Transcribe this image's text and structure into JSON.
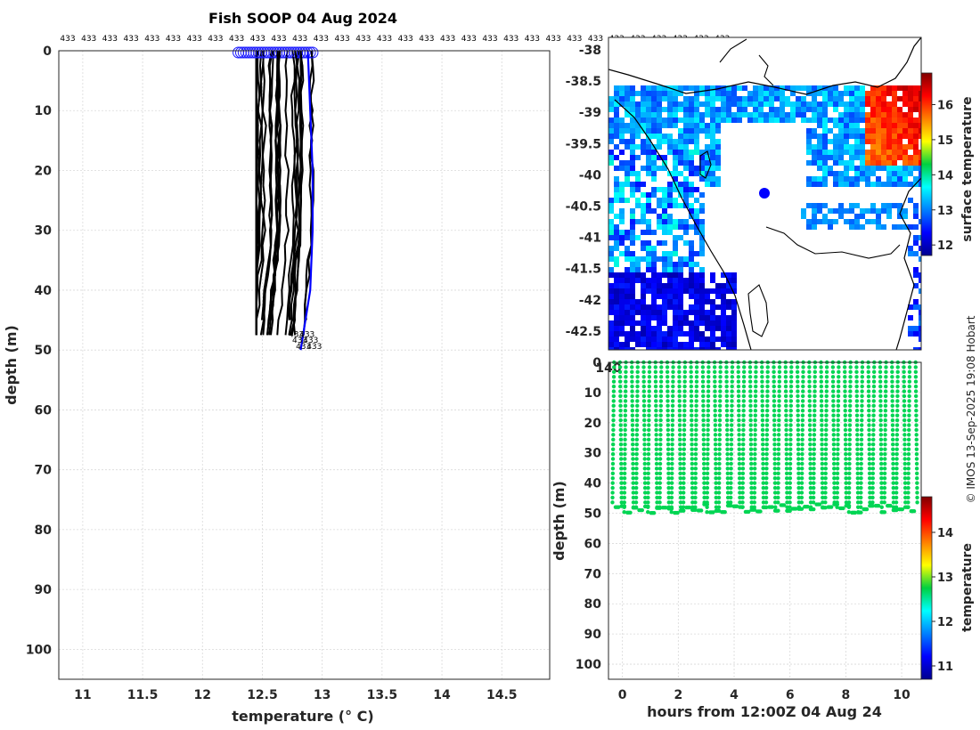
{
  "header": {
    "title": "Fish SOOP 04 Aug 2024"
  },
  "credit": "© IMOS 13-Sep-2025 19:08 Hobart",
  "chart_data": [
    {
      "type": "line",
      "name": "profiles",
      "title": "Fish SOOP 04 Aug 2024",
      "xlabel": "temperature (° C)",
      "ylabel": "depth (m)",
      "xlim": [
        10.8,
        14.9
      ],
      "ylim": [
        105,
        0
      ],
      "xticks": [
        11,
        11.5,
        12,
        12.5,
        13,
        13.5,
        14,
        14.5
      ],
      "xtick_labels": [
        "11",
        "11.5",
        "12",
        "12.5",
        "13",
        "13.5",
        "14",
        "14.5"
      ],
      "yticks": [
        0,
        10,
        20,
        30,
        40,
        50,
        60,
        70,
        80,
        90,
        100
      ],
      "ytick_labels": [
        "0",
        "10",
        "20",
        "30",
        "40",
        "50",
        "60",
        "70",
        "80",
        "90",
        "100"
      ],
      "profile_label": "433",
      "profile_count": 30,
      "surface_temp_range": [
        12.3,
        12.92
      ],
      "bottom_depth_range": [
        47,
        50
      ],
      "series": [
        {
          "name": "latest profile",
          "color": "#0000ff",
          "points": [
            [
              12.88,
              0
            ],
            [
              12.9,
              10
            ],
            [
              12.92,
              20
            ],
            [
              12.92,
              30
            ],
            [
              12.9,
              40
            ],
            [
              12.82,
              50
            ]
          ]
        }
      ]
    },
    {
      "type": "heatmap",
      "name": "surface-temperature-map",
      "xlabel": "",
      "ylabel": "",
      "xlim": [
        140,
        142.6
      ],
      "ylim": [
        -42.8,
        -37.8
      ],
      "yticks": [
        -38,
        -38.5,
        -39,
        -39.5,
        -40,
        -40.5,
        -41,
        -41.5,
        -42,
        -42.5
      ],
      "ytick_labels": [
        "-38",
        "-38.5",
        "-39",
        "-39.5",
        "-40",
        "-40.5",
        "-41",
        "-41.5",
        "-42",
        "-42.5"
      ],
      "colorbar_label": "surface temperature",
      "colorbar_range": [
        11.7,
        16.9
      ],
      "colorbar_ticks": [
        12,
        13,
        14,
        15,
        16
      ],
      "colorbar_tick_labels": [
        "12",
        "13",
        "14",
        "15",
        "16"
      ],
      "ship_position": {
        "lon": 141.2,
        "lat": -40.3
      }
    },
    {
      "type": "scatter",
      "name": "depth-time-section",
      "xlabel": "hours from 12:00Z 04 Aug 24",
      "ylabel": "depth (m)",
      "xlim": [
        -0.5,
        10.7
      ],
      "ylim": [
        105,
        0
      ],
      "xticks": [
        0,
        2,
        4,
        6,
        8,
        10
      ],
      "xtick_labels": [
        "0",
        "2",
        "4",
        "6",
        "8",
        "10"
      ],
      "yticks": [
        0,
        10,
        20,
        30,
        40,
        50,
        60,
        70,
        80,
        90,
        100
      ],
      "ytick_labels": [
        "0",
        "10",
        "20",
        "30",
        "40",
        "50",
        "60",
        "70",
        "80",
        "90",
        "100"
      ],
      "colorbar_label": "temperature",
      "colorbar_range": [
        10.7,
        14.8
      ],
      "colorbar_ticks": [
        11,
        12,
        13,
        14
      ],
      "colorbar_tick_labels": [
        "11",
        "12",
        "13",
        "14"
      ],
      "casts": {
        "start_hour": -0.3,
        "end_hour": 10.5,
        "count": 52,
        "max_depth": 50,
        "typical_temp": 12.7
      }
    }
  ]
}
